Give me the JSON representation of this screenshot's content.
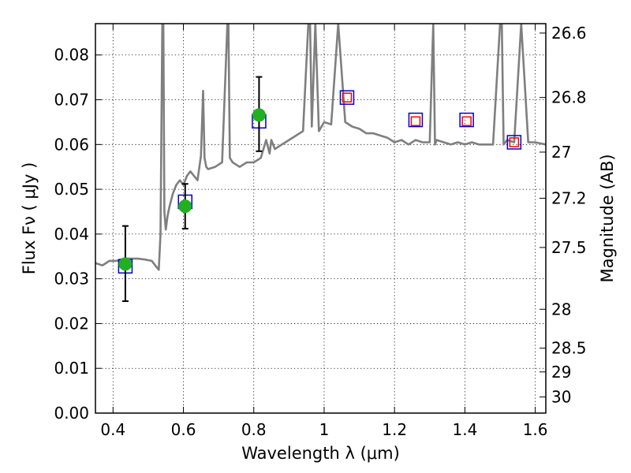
{
  "chart_data": {
    "type": "scatter",
    "xlabel": "Wavelength  λ (μm)",
    "ylabel": "Flux  Fν  ( μJy )",
    "ylabel_right": "Magnitude (AB)",
    "xlim": [
      0.35,
      1.63
    ],
    "ylim": [
      0.0,
      0.087
    ],
    "x_ticks": [
      0.4,
      0.6,
      0.8,
      1.0,
      1.2,
      1.4,
      1.6
    ],
    "x_tick_labels": [
      "0.4",
      "0.6",
      "0.8",
      "1",
      "1.2",
      "1.4",
      "1.6"
    ],
    "y_ticks": [
      0.0,
      0.01,
      0.02,
      0.03,
      0.04,
      0.05,
      0.06,
      0.07,
      0.08
    ],
    "y_tick_labels": [
      "0.00",
      "0.01",
      "0.02",
      "0.03",
      "0.04",
      "0.05",
      "0.06",
      "0.07",
      "0.08"
    ],
    "right_ticks": [
      {
        "flux": 0.0849,
        "label": "26.6"
      },
      {
        "flux": 0.0705,
        "label": "26.8"
      },
      {
        "flux": 0.0583,
        "label": "27"
      },
      {
        "flux": 0.048,
        "label": "27.2"
      },
      {
        "flux": 0.037,
        "label": "27.5"
      },
      {
        "flux": 0.0232,
        "label": "28"
      },
      {
        "flux": 0.0145,
        "label": "28.5"
      },
      {
        "flux": 0.0092,
        "label": "29"
      },
      {
        "flux": 0.0036,
        "label": "30"
      }
    ],
    "grid": true,
    "series": [
      {
        "style": "line",
        "color": "#7f7f7f",
        "x": [
          0.35,
          0.37,
          0.39,
          0.41,
          0.43,
          0.45,
          0.47,
          0.49,
          0.51,
          0.53,
          0.535,
          0.54,
          0.543,
          0.546,
          0.55,
          0.555,
          0.56,
          0.57,
          0.58,
          0.59,
          0.6,
          0.61,
          0.62,
          0.63,
          0.64,
          0.65,
          0.656,
          0.66,
          0.665,
          0.67,
          0.69,
          0.71,
          0.725,
          0.728,
          0.732,
          0.74,
          0.76,
          0.78,
          0.8,
          0.82,
          0.835,
          0.845,
          0.85,
          0.86,
          0.88,
          0.9,
          0.92,
          0.94,
          0.955,
          0.96,
          0.965,
          0.975,
          0.985,
          1.0,
          1.02,
          1.04,
          1.06,
          1.08,
          1.1,
          1.12,
          1.14,
          1.16,
          1.18,
          1.2,
          1.22,
          1.24,
          1.26,
          1.28,
          1.3,
          1.31,
          1.315,
          1.32,
          1.34,
          1.36,
          1.38,
          1.4,
          1.42,
          1.44,
          1.46,
          1.48,
          1.5,
          1.505,
          1.51,
          1.52,
          1.54,
          1.56,
          1.58,
          1.6,
          1.63
        ],
        "y": [
          0.0335,
          0.033,
          0.034,
          0.034,
          0.0345,
          0.0345,
          0.0345,
          0.0343,
          0.034,
          0.032,
          0.04,
          0.087,
          0.087,
          0.045,
          0.041,
          0.044,
          0.046,
          0.049,
          0.051,
          0.052,
          0.051,
          0.053,
          0.054,
          0.053,
          0.052,
          0.0575,
          0.072,
          0.057,
          0.055,
          0.0545,
          0.055,
          0.056,
          0.087,
          0.087,
          0.057,
          0.056,
          0.055,
          0.056,
          0.056,
          0.057,
          0.061,
          0.058,
          0.061,
          0.059,
          0.06,
          0.061,
          0.062,
          0.063,
          0.087,
          0.087,
          0.064,
          0.087,
          0.063,
          0.065,
          0.0645,
          0.087,
          0.065,
          0.064,
          0.0635,
          0.0625,
          0.0625,
          0.062,
          0.0615,
          0.0605,
          0.061,
          0.06,
          0.061,
          0.0605,
          0.0605,
          0.087,
          0.06,
          0.061,
          0.0605,
          0.06,
          0.0605,
          0.06,
          0.0605,
          0.06,
          0.06,
          0.06,
          0.087,
          0.087,
          0.06,
          0.061,
          0.0605,
          0.087,
          0.0605,
          0.0605,
          0.06
        ]
      },
      {
        "name": "",
        "style": "open-square",
        "color": "#0000cc",
        "x": [
          0.435,
          0.605,
          0.815,
          1.065,
          1.26,
          1.405,
          1.54
        ],
        "y": [
          0.0328,
          0.0472,
          0.0652,
          0.0705,
          0.0655,
          0.0655,
          0.0605
        ]
      },
      {
        "name": "",
        "style": "open-square-small",
        "color": "#ff0000",
        "x": [
          1.065,
          1.26,
          1.405,
          1.54
        ],
        "y": [
          0.0705,
          0.0652,
          0.0652,
          0.0605
        ]
      },
      {
        "name": "",
        "style": "filled-circle",
        "color": "#22b022",
        "x": [
          0.435,
          0.605,
          0.815
        ],
        "y": [
          0.0333,
          0.0462,
          0.0666
        ],
        "yerr_low": [
          0.025,
          0.0412,
          0.0585
        ],
        "yerr_high": [
          0.0418,
          0.0512,
          0.0751
        ]
      }
    ]
  }
}
